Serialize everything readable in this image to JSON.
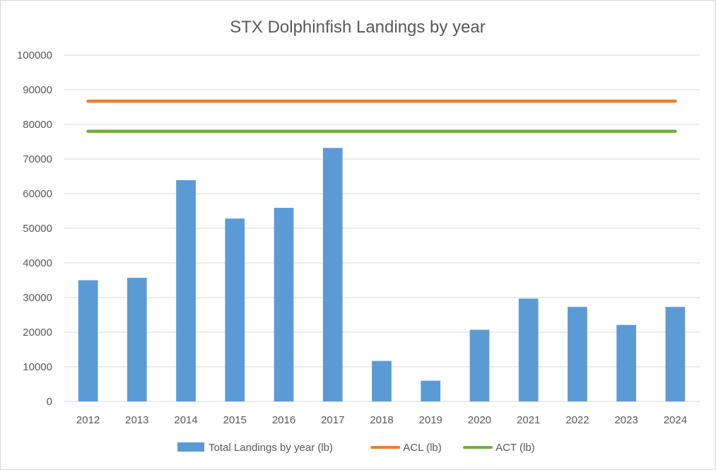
{
  "chart_data": {
    "type": "bar",
    "title": "STX Dolphinfish Landings by year",
    "xlabel": "",
    "ylabel": "",
    "ylim": [
      0,
      100000
    ],
    "yticks": [
      0,
      10000,
      20000,
      30000,
      40000,
      50000,
      60000,
      70000,
      80000,
      90000,
      100000
    ],
    "categories": [
      "2012",
      "2013",
      "2014",
      "2015",
      "2016",
      "2017",
      "2018",
      "2019",
      "2020",
      "2021",
      "2022",
      "2023",
      "2024"
    ],
    "series": [
      {
        "name": "Total Landings by year (lb)",
        "kind": "bar",
        "color": "#5b9bd5",
        "values": [
          35000,
          35700,
          63900,
          52800,
          55900,
          73200,
          11700,
          6000,
          20700,
          29700,
          27300,
          22100,
          27300
        ]
      },
      {
        "name": "ACL (lb)",
        "kind": "line",
        "color": "#ed7d31",
        "values": [
          86700,
          86700,
          86700,
          86700,
          86700,
          86700,
          86700,
          86700,
          86700,
          86700,
          86700,
          86700,
          86700
        ]
      },
      {
        "name": "ACT (lb)",
        "kind": "line",
        "color": "#70ad47",
        "values": [
          78000,
          78000,
          78000,
          78000,
          78000,
          78000,
          78000,
          78000,
          78000,
          78000,
          78000,
          78000,
          78000
        ]
      }
    ],
    "grid": true,
    "legend_position": "bottom",
    "axis_color": "#595959",
    "grid_color": "#d9d9d9"
  }
}
